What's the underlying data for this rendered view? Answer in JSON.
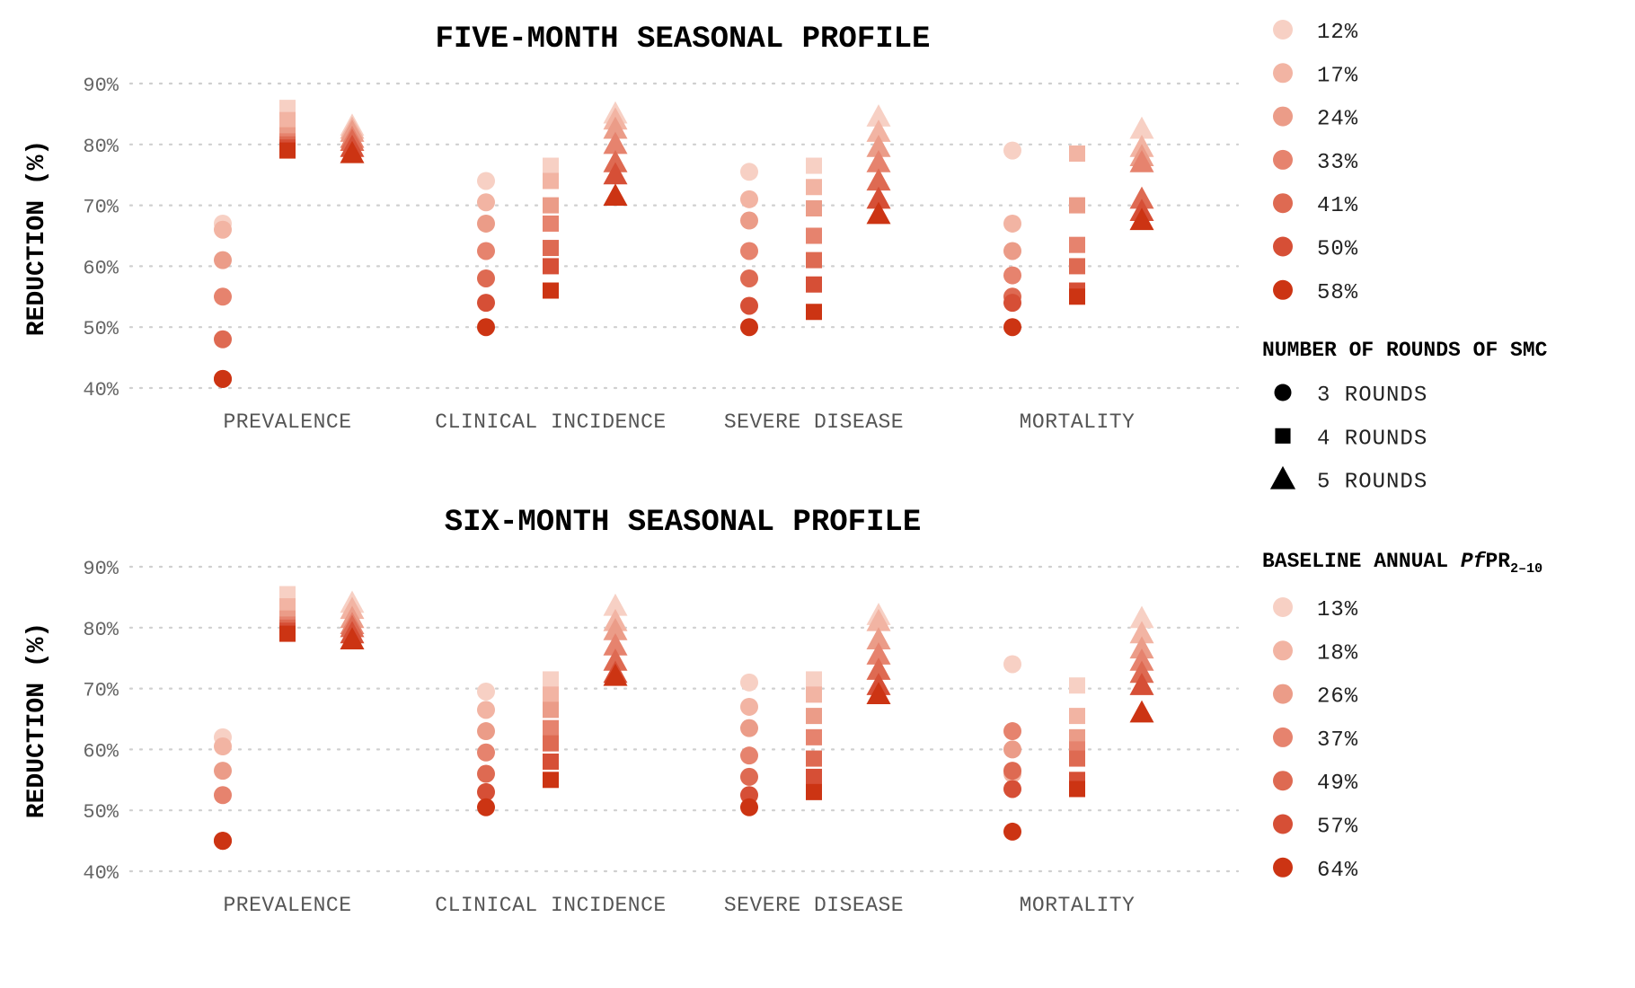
{
  "colors": {
    "shades": [
      "#f7d0c4",
      "#f2b4a3",
      "#eb9c88",
      "#e6836e",
      "#de6a52",
      "#d64f36",
      "#cc3413"
    ],
    "grid": "#cfcfcf",
    "shape_legend": "#000000"
  },
  "chart_data": [
    {
      "type": "scatter",
      "title": "FIVE-MONTH SEASONAL PROFILE",
      "ylabel": "REDUCTION (%)",
      "ylim": [
        40,
        90
      ],
      "yticks": [
        "40%",
        "50%",
        "60%",
        "70%",
        "80%",
        "90%"
      ],
      "grid": true,
      "categories": [
        "PREVALENCE",
        "CLINICAL INCIDENCE",
        "SEVERE DISEASE",
        "MORTALITY"
      ],
      "baseline_levels": [
        "12%",
        "17%",
        "24%",
        "33%",
        "41%",
        "50%",
        "58%"
      ],
      "series": [
        {
          "rounds": 3,
          "shape": "circle",
          "values": [
            [
              67,
              66,
              61,
              55,
              48,
              41.5,
              41.5
            ],
            [
              74,
              70.5,
              67,
              62.5,
              58,
              54,
              50
            ],
            [
              75.5,
              71,
              67.5,
              62.5,
              58,
              53.5,
              50
            ],
            [
              79,
              67,
              62.5,
              58.5,
              55,
              54,
              50
            ]
          ]
        },
        {
          "rounds": 4,
          "shape": "square",
          "values": [
            [
              86,
              84,
              81.5,
              80.5,
              80,
              79.5,
              79
            ],
            [
              76.5,
              74,
              70,
              67,
              63,
              60,
              56
            ]
          ],
          "values_b": [
            [
              76.5,
              73,
              69.5,
              65,
              61,
              57,
              52.5
            ],
            [
              78.5,
              78.5,
              70,
              63.5,
              60,
              56,
              55
            ]
          ]
        },
        {
          "rounds": 5,
          "shape": "triangle",
          "values": [
            [
              83,
              82.5,
              82,
              81,
              80.5,
              79.5,
              78.5
            ],
            [
              85,
              84,
              82.5,
              80,
              77,
              75,
              71.5
            ],
            [
              84.5,
              82,
              79.5,
              77,
              74,
              71,
              68.5
            ],
            [
              82.5,
              79.5,
              78,
              77,
              71,
              69,
              67.5
            ]
          ]
        }
      ]
    },
    {
      "type": "scatter",
      "title": "SIX-MONTH SEASONAL PROFILE",
      "ylabel": "REDUCTION (%)",
      "ylim": [
        40,
        90
      ],
      "yticks": [
        "40%",
        "50%",
        "60%",
        "70%",
        "80%",
        "90%"
      ],
      "grid": true,
      "categories": [
        "PREVALENCE",
        "CLINICAL INCIDENCE",
        "SEVERE DISEASE",
        "MORTALITY"
      ],
      "baseline_levels": [
        "13%",
        "18%",
        "26%",
        "37%",
        "49%",
        "57%",
        "64%"
      ],
      "series": [
        {
          "rounds": 3,
          "shape": "circle",
          "values": [
            [
              62,
              60.5,
              56.5,
              52.5,
              45,
              45,
              45
            ],
            [
              69.5,
              66.5,
              63,
              59.5,
              56,
              53,
              50.5
            ],
            [
              71,
              67,
              63.5,
              59,
              55.5,
              52.5,
              50.5
            ],
            [
              74,
              56,
              60,
              63,
              56.5,
              53.5,
              46.5
            ]
          ]
        },
        {
          "rounds": 4,
          "shape": "square",
          "values": [
            [
              85.5,
              83.5,
              81.5,
              80.5,
              80,
              79.5,
              79
            ],
            [
              71.5,
              69,
              66.5,
              63.5,
              61,
              58,
              55
            ]
          ],
          "values_b": [
            [
              71.5,
              69,
              65.5,
              62,
              58.5,
              55.5,
              53
            ],
            [
              70.5,
              65.5,
              62,
              60,
              58.5,
              55,
              53.5
            ]
          ]
        },
        {
          "rounds": 5,
          "shape": "triangle",
          "values": [
            [
              84,
              83,
              81.5,
              80.5,
              80,
              79,
              78
            ],
            [
              83.5,
              81,
              79.5,
              77,
              74.5,
              72.5,
              72
            ],
            [
              82,
              81,
              78,
              75.5,
              73,
              70.5,
              69
            ],
            [
              81.5,
              79,
              76.5,
              74.5,
              72.5,
              70.5,
              66
            ]
          ]
        }
      ]
    }
  ],
  "legend": {
    "top_levels": [
      "12%",
      "17%",
      "24%",
      "33%",
      "41%",
      "50%",
      "58%"
    ],
    "rounds_title": "NUMBER OF ROUNDS OF SMC",
    "rounds": [
      {
        "label": "3 ROUNDS",
        "shape": "circle"
      },
      {
        "label": "4 ROUNDS",
        "shape": "square"
      },
      {
        "label": "5 ROUNDS",
        "shape": "triangle"
      }
    ],
    "baseline_title_main": "BASELINE ANNUAL ",
    "baseline_title_italic": "Pf",
    "baseline_title_pr": "PR",
    "baseline_title_sub": "2–10",
    "bottom_levels": [
      "13%",
      "18%",
      "26%",
      "37%",
      "49%",
      "57%",
      "64%"
    ]
  }
}
